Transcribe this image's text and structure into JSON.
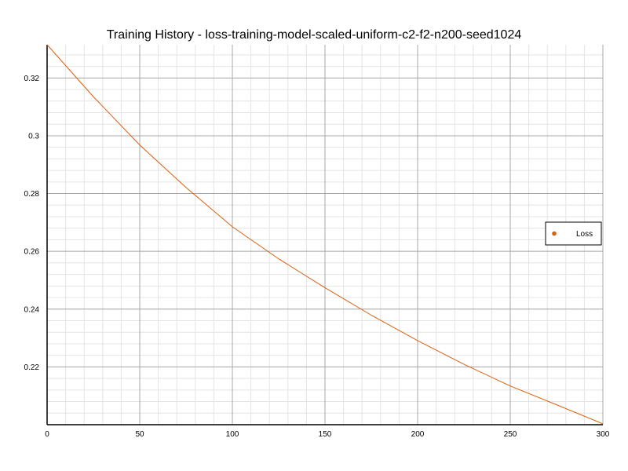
{
  "chart_data": {
    "type": "line",
    "title": "Training History - loss-training-model-scaled-uniform-c2-f2-n200-seed1024",
    "xlabel": "",
    "ylabel": "",
    "xlim": [
      0,
      300
    ],
    "ylim": [
      0.2,
      0.3315
    ],
    "x_ticks": [
      0,
      50,
      100,
      150,
      200,
      250,
      300
    ],
    "y_ticks": [
      0.22,
      0.24,
      0.26,
      0.28,
      0.3,
      0.32
    ],
    "y_tick_labels": [
      "0.22",
      "0.24",
      "0.26",
      "0.28",
      "0.3",
      "0.32"
    ],
    "grid": true,
    "legend_position": "right",
    "series": [
      {
        "name": "Loss",
        "color": "#d95f0e",
        "x": [
          0,
          25,
          50,
          75,
          100,
          125,
          150,
          175,
          200,
          225,
          250,
          275,
          300
        ],
        "y": [
          0.3315,
          0.3135,
          0.2968,
          0.2821,
          0.2685,
          0.2574,
          0.2474,
          0.2379,
          0.2291,
          0.2209,
          0.2134,
          0.2069,
          0.2003
        ]
      }
    ]
  }
}
